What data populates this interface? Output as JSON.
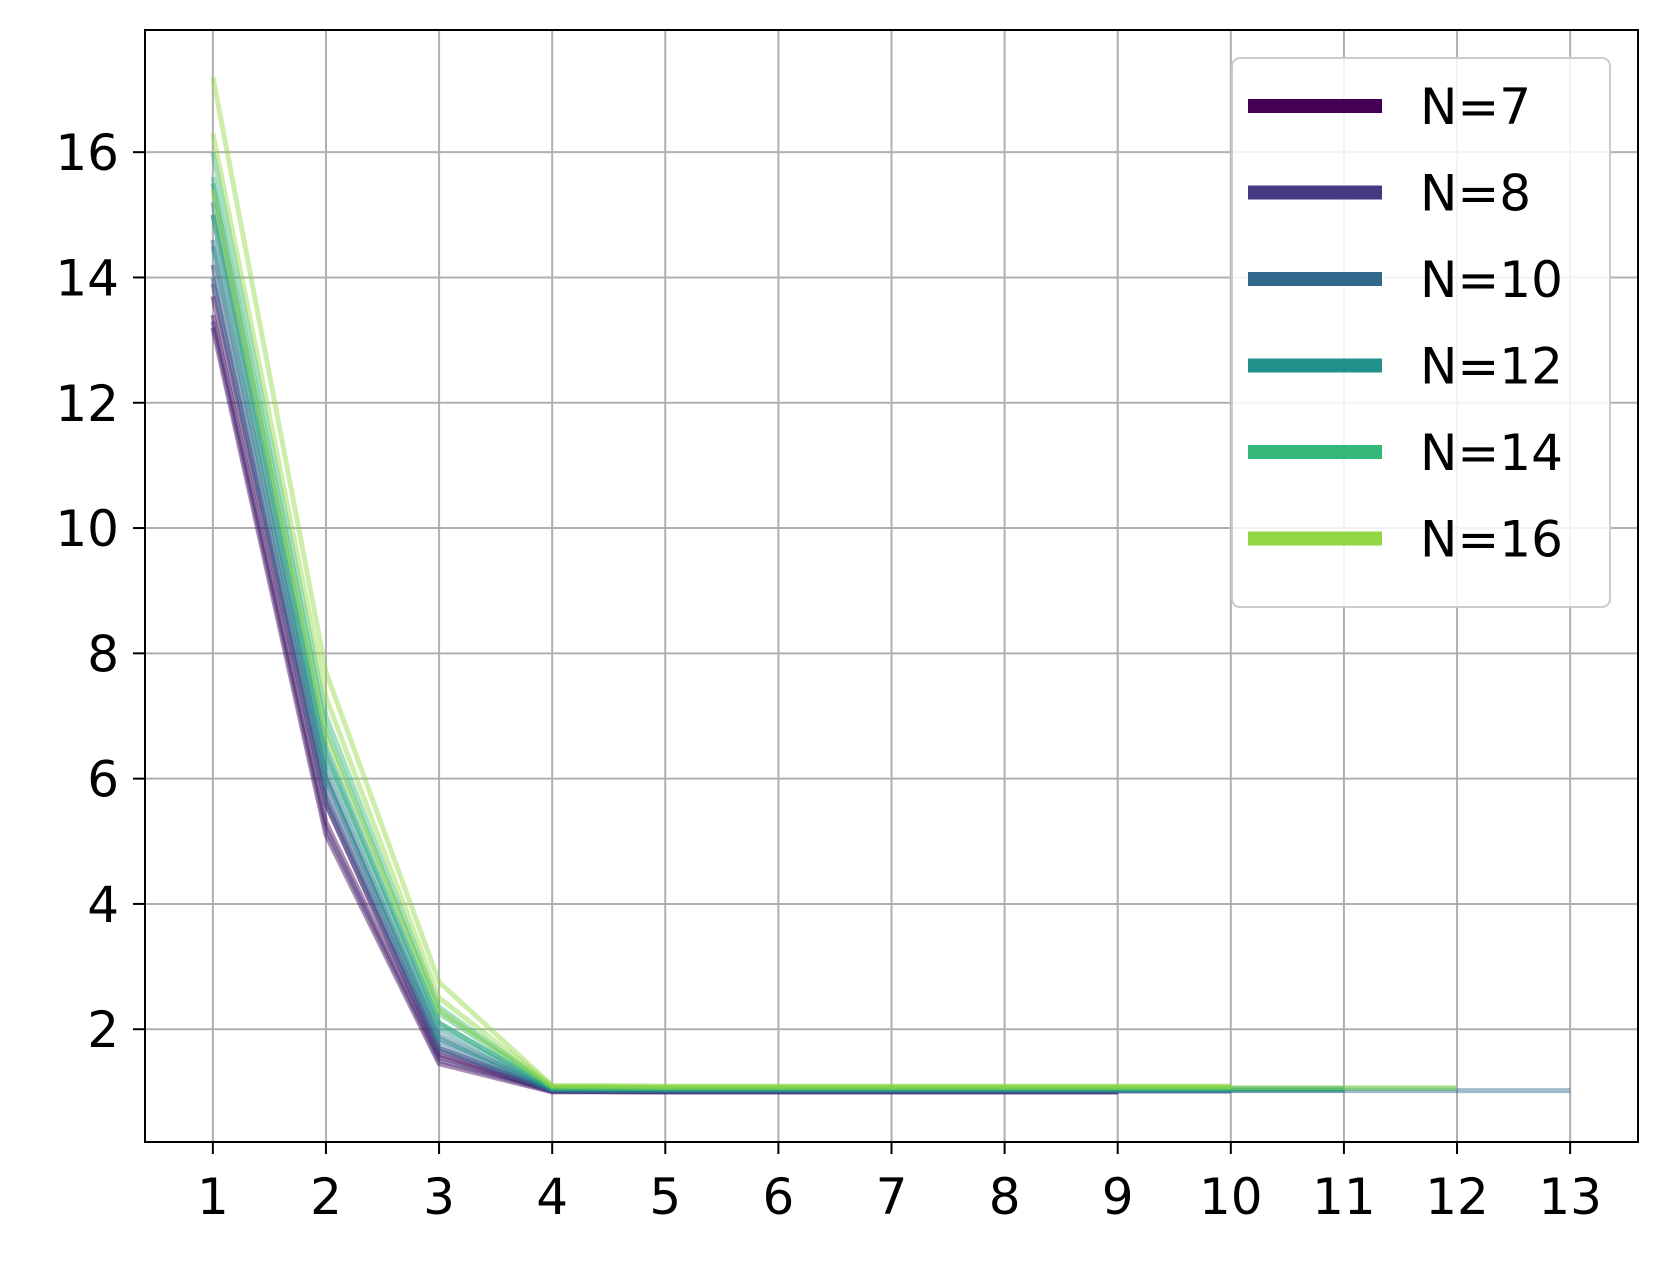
{
  "chart_data": {
    "type": "line",
    "title": "",
    "xlabel": "",
    "ylabel": "",
    "xlim": [
      0.4,
      13.6
    ],
    "ylim": [
      0.2,
      17.95
    ],
    "xticks": [
      1,
      2,
      3,
      4,
      5,
      6,
      7,
      8,
      9,
      10,
      11,
      12,
      13
    ],
    "yticks": [
      2,
      4,
      6,
      8,
      10,
      12,
      14,
      16
    ],
    "grid": true,
    "legend_position": "top-right",
    "series": [
      {
        "name": "N=7",
        "color": "#440154",
        "runs": [
          {
            "x": [
              1,
              2,
              3,
              4,
              5,
              6,
              7,
              8,
              9
            ],
            "y": [
              13.2,
              5.1,
              1.45,
              1.0,
              1.0,
              1.0,
              1.0,
              1.0,
              1.0
            ]
          },
          {
            "x": [
              1,
              2,
              3,
              4,
              5,
              6,
              7,
              8,
              9
            ],
            "y": [
              13.4,
              5.3,
              1.55,
              1.02,
              1.01,
              1.01,
              1.01,
              1.01,
              1.01
            ]
          },
          {
            "x": [
              1,
              2,
              3,
              4,
              5,
              6,
              7,
              8,
              9
            ],
            "y": [
              13.7,
              5.6,
              1.6,
              1.01,
              1.0,
              1.0,
              1.0,
              1.0,
              1.0
            ]
          }
        ]
      },
      {
        "name": "N=8",
        "color": "#443983",
        "runs": [
          {
            "x": [
              1,
              2,
              3,
              4,
              5,
              6,
              7,
              8,
              9
            ],
            "y": [
              13.3,
              5.2,
              1.5,
              1.01,
              1.0,
              1.0,
              1.0,
              1.0,
              1.0
            ]
          },
          {
            "x": [
              1,
              2,
              3,
              4,
              5,
              6,
              7,
              8,
              9,
              10
            ],
            "y": [
              13.9,
              5.6,
              1.65,
              1.02,
              1.01,
              1.01,
              1.01,
              1.01,
              1.01,
              1.01
            ]
          },
          {
            "x": [
              1,
              2,
              3,
              4,
              5,
              6,
              7,
              8,
              9
            ],
            "y": [
              14.2,
              5.8,
              1.7,
              1.02,
              1.01,
              1.01,
              1.01,
              1.01,
              1.01
            ]
          }
        ]
      },
      {
        "name": "N=10",
        "color": "#31688e",
        "runs": [
          {
            "x": [
              1,
              2,
              3,
              4,
              5,
              6,
              7,
              8,
              9,
              10,
              11,
              12,
              13
            ],
            "y": [
              14.0,
              5.7,
              1.7,
              1.02,
              1.02,
              1.02,
              1.02,
              1.02,
              1.02,
              1.02,
              1.02,
              1.02,
              1.02
            ]
          },
          {
            "x": [
              1,
              2,
              3,
              4,
              5,
              6,
              7,
              8,
              9,
              10
            ],
            "y": [
              14.6,
              6.0,
              1.8,
              1.03,
              1.02,
              1.02,
              1.02,
              1.02,
              1.02,
              1.02
            ]
          },
          {
            "x": [
              1,
              2,
              3,
              4,
              5,
              6,
              7,
              8,
              9,
              10,
              11
            ],
            "y": [
              15.0,
              6.1,
              1.9,
              1.04,
              1.03,
              1.03,
              1.03,
              1.03,
              1.03,
              1.03,
              1.03
            ]
          }
        ]
      },
      {
        "name": "N=12",
        "color": "#21918c",
        "runs": [
          {
            "x": [
              1,
              2,
              3,
              4,
              5,
              6,
              7,
              8,
              9,
              10,
              11
            ],
            "y": [
              14.5,
              6.0,
              1.85,
              1.04,
              1.03,
              1.03,
              1.03,
              1.03,
              1.03,
              1.03,
              1.03
            ]
          },
          {
            "x": [
              1,
              2,
              3,
              4,
              5,
              6,
              7,
              8,
              9,
              10
            ],
            "y": [
              15.2,
              6.3,
              2.0,
              1.05,
              1.04,
              1.04,
              1.04,
              1.04,
              1.04,
              1.04
            ]
          },
          {
            "x": [
              1,
              2,
              3,
              4,
              5,
              6,
              7,
              8,
              9,
              10,
              11
            ],
            "y": [
              15.5,
              6.5,
              2.1,
              1.05,
              1.05,
              1.05,
              1.05,
              1.05,
              1.05,
              1.05,
              1.05
            ]
          }
        ]
      },
      {
        "name": "N=14",
        "color": "#35b779",
        "runs": [
          {
            "x": [
              1,
              2,
              3,
              4,
              5,
              6,
              7,
              8,
              9,
              10,
              11,
              12
            ],
            "y": [
              15.0,
              6.4,
              2.1,
              1.06,
              1.05,
              1.05,
              1.05,
              1.05,
              1.05,
              1.05,
              1.05,
              1.05
            ]
          },
          {
            "x": [
              1,
              2,
              3,
              4,
              5,
              6,
              7,
              8,
              9,
              10
            ],
            "y": [
              15.6,
              6.8,
              2.25,
              1.07,
              1.06,
              1.06,
              1.06,
              1.06,
              1.06,
              1.06
            ]
          },
          {
            "x": [
              1,
              2,
              3,
              4,
              5,
              6,
              7,
              8,
              9,
              10
            ],
            "y": [
              16.0,
              7.0,
              2.35,
              1.08,
              1.07,
              1.07,
              1.07,
              1.07,
              1.07,
              1.07
            ]
          }
        ]
      },
      {
        "name": "N=16",
        "color": "#90d743",
        "runs": [
          {
            "x": [
              1,
              2,
              3,
              4,
              5,
              6,
              7,
              8,
              9,
              10,
              11,
              12
            ],
            "y": [
              15.4,
              6.7,
              2.3,
              1.08,
              1.07,
              1.07,
              1.07,
              1.07,
              1.07,
              1.07,
              1.07,
              1.07
            ]
          },
          {
            "x": [
              1,
              2,
              3,
              4,
              5,
              6,
              7,
              8,
              9,
              10
            ],
            "y": [
              16.3,
              7.3,
              2.5,
              1.1,
              1.09,
              1.09,
              1.09,
              1.09,
              1.09,
              1.09
            ]
          },
          {
            "x": [
              1,
              2,
              3,
              4,
              5,
              6,
              7,
              8,
              9,
              10
            ],
            "y": [
              17.2,
              7.7,
              2.75,
              1.1,
              1.09,
              1.09,
              1.09,
              1.09,
              1.09,
              1.09
            ]
          }
        ]
      }
    ]
  }
}
